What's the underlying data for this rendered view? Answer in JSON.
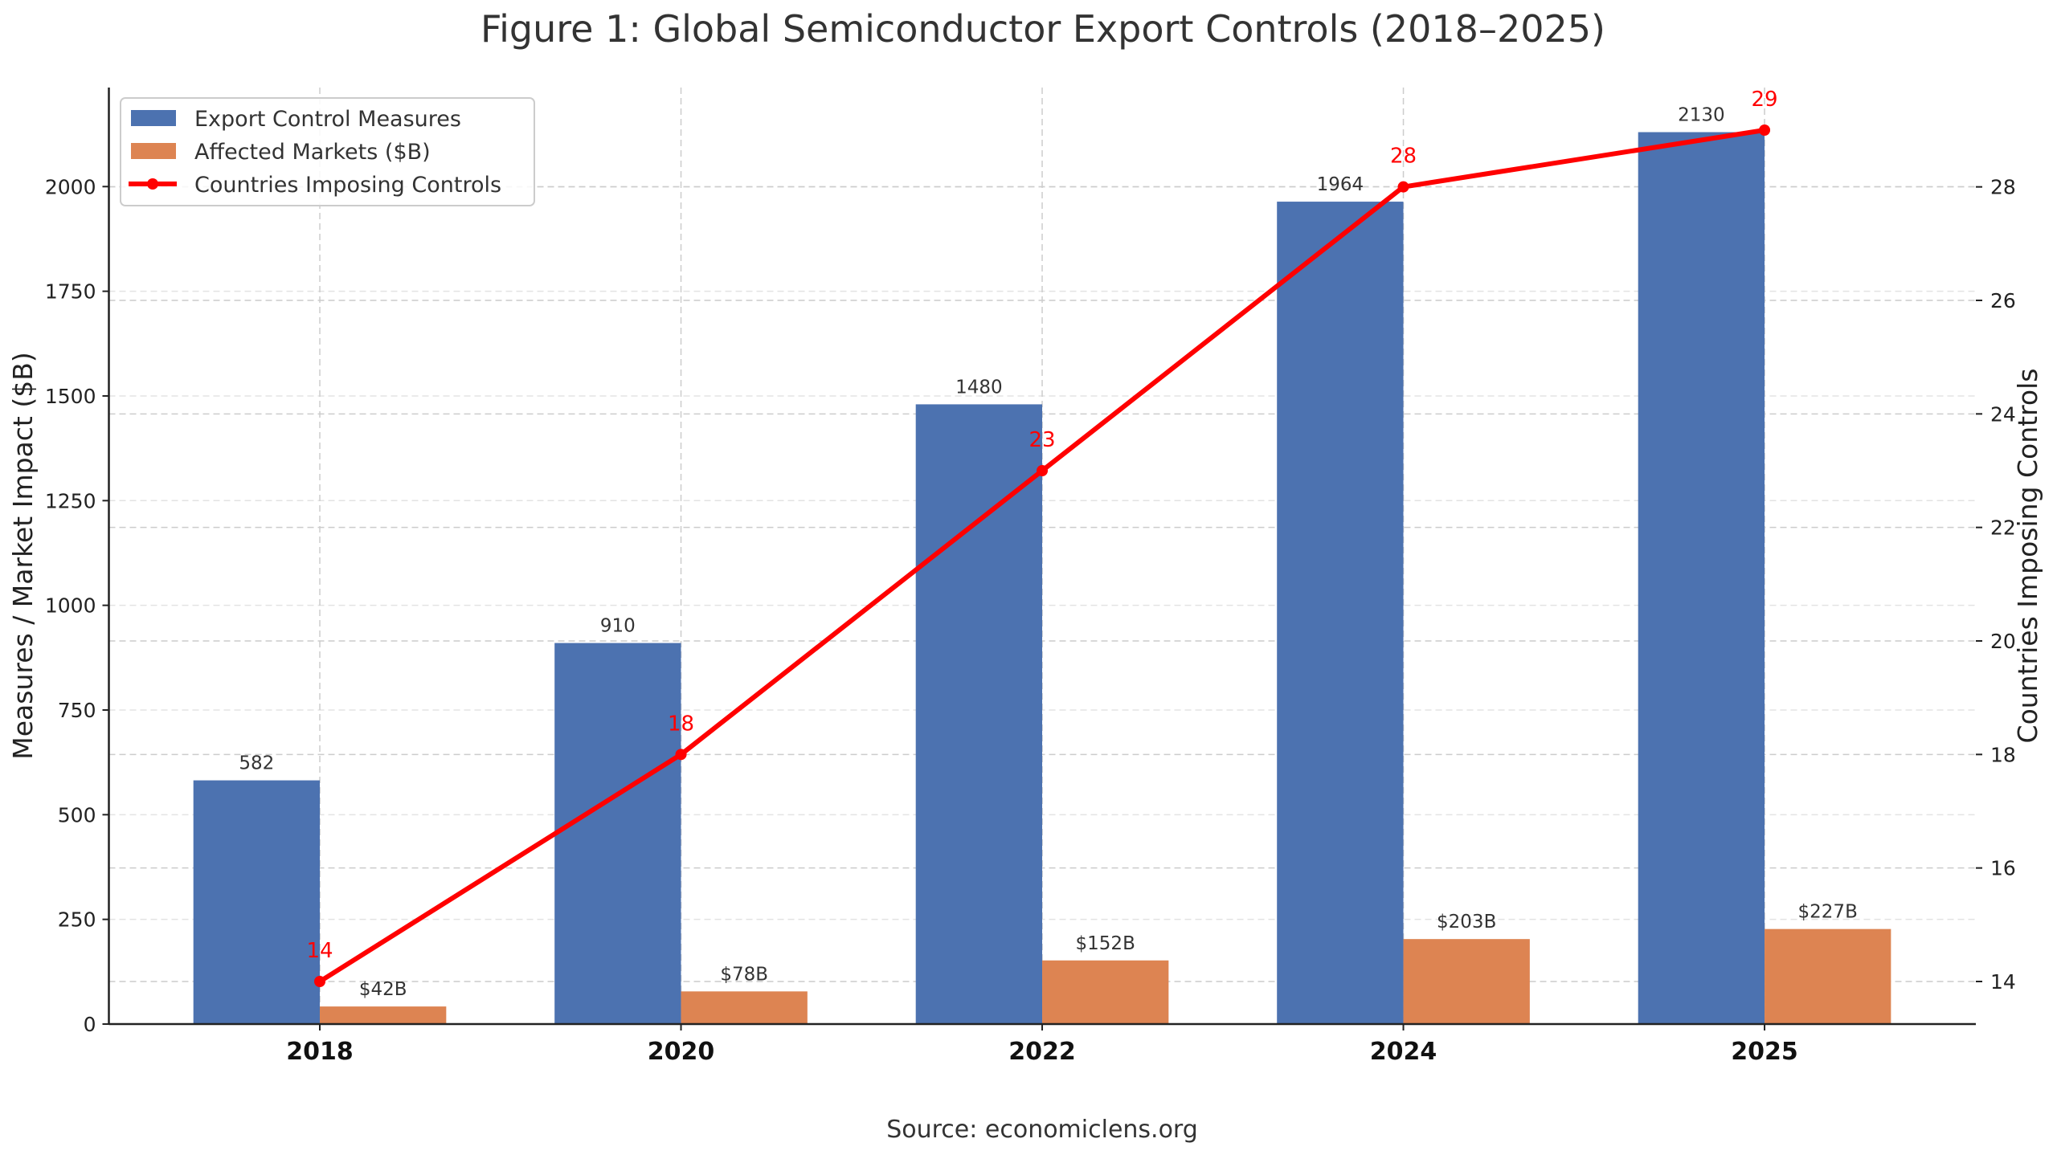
{
  "chart_data": {
    "type": "bar",
    "title": "Figure 1: Global Semiconductor Export Controls (2018–2025)",
    "source": "Source: economiclens.org",
    "categories": [
      "2018",
      "2020",
      "2022",
      "2024",
      "2025"
    ],
    "xlabel": "",
    "ylabel": "Measures / Market Impact ($B)",
    "y2label": "Countries Imposing Controls",
    "ylim": [
      0,
      2236.5
    ],
    "y2lim": [
      13.25,
      29.75
    ],
    "yticks": [
      0,
      250,
      500,
      750,
      1000,
      1250,
      1500,
      1750,
      2000
    ],
    "y2ticks": [
      14,
      16,
      18,
      20,
      22,
      24,
      26,
      28
    ],
    "grid": true,
    "legend_position": "top-left",
    "series": [
      {
        "name": "Export Control Measures",
        "type": "bar",
        "axis": "left",
        "color": "#4c72b0",
        "values": [
          582,
          910,
          1480,
          1964,
          2130
        ],
        "labels": [
          "582",
          "910",
          "1480",
          "1964",
          "2130"
        ]
      },
      {
        "name": "Affected Markets ($B)",
        "type": "bar",
        "axis": "left",
        "color": "#dd8452",
        "values": [
          42,
          78,
          152,
          203,
          227
        ],
        "labels": [
          "$42B",
          "$78B",
          "$152B",
          "$203B",
          "$227B"
        ]
      },
      {
        "name": "Countries Imposing Controls",
        "type": "line",
        "axis": "right",
        "color": "#ff0000",
        "values": [
          14,
          18,
          23,
          28,
          29
        ],
        "labels": [
          "14",
          "18",
          "23",
          "28",
          "29"
        ]
      }
    ]
  }
}
